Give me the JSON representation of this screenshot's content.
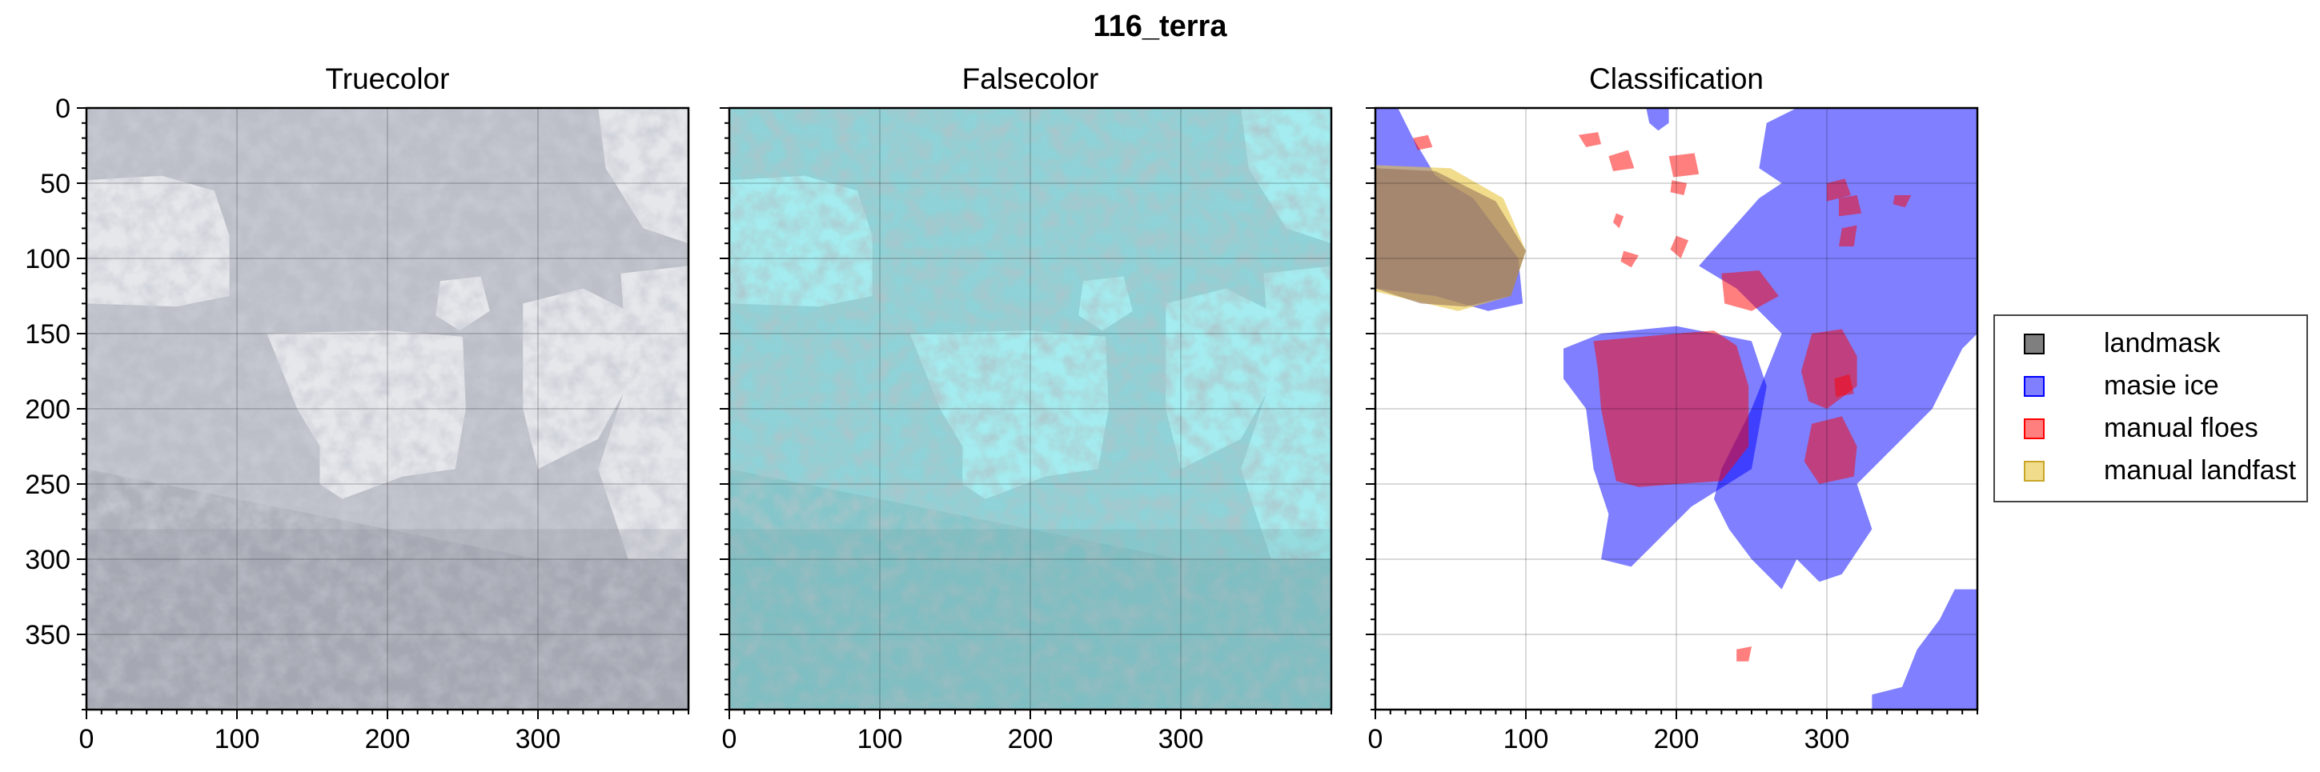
{
  "figure_title": "116_terra",
  "panels": [
    {
      "title": "Truecolor"
    },
    {
      "title": "Falsecolor"
    },
    {
      "title": "Classification"
    }
  ],
  "legend": [
    {
      "label": "landmask",
      "color": "#000000",
      "alpha": 0.5
    },
    {
      "label": "masie ice",
      "color": "#0000ff",
      "alpha": 0.5
    },
    {
      "label": "manual floes",
      "color": "#ff0000",
      "alpha": 0.5
    },
    {
      "label": "manual landfast",
      "color": "#e8c440",
      "alpha": 0.6
    }
  ],
  "chart_data": {
    "type": "image",
    "panels": [
      "Truecolor",
      "Falsecolor",
      "Classification"
    ],
    "x_ticks": [
      0,
      100,
      200,
      300
    ],
    "y_ticks": [
      0,
      50,
      100,
      150,
      200,
      250,
      300,
      350
    ],
    "xlim": [
      0,
      400
    ],
    "ylim": [
      400,
      0
    ],
    "y_axis_shown_on": "Truecolor",
    "grid": true,
    "classification_regions": {
      "landmask": [
        [
          [
            0,
            40
          ],
          [
            40,
            42
          ],
          [
            80,
            62
          ],
          [
            100,
            95
          ],
          [
            90,
            125
          ],
          [
            60,
            132
          ],
          [
            30,
            130
          ],
          [
            0,
            120
          ]
        ]
      ],
      "manual_landfast": [
        [
          [
            0,
            38
          ],
          [
            50,
            40
          ],
          [
            85,
            60
          ],
          [
            100,
            95
          ],
          [
            90,
            125
          ],
          [
            55,
            135
          ],
          [
            0,
            122
          ]
        ]
      ],
      "masie_ice": [
        [
          [
            0,
            0
          ],
          [
            15,
            0
          ],
          [
            25,
            20
          ],
          [
            40,
            45
          ],
          [
            65,
            60
          ],
          [
            95,
            100
          ],
          [
            98,
            130
          ],
          [
            75,
            135
          ],
          [
            40,
            125
          ],
          [
            0,
            120
          ]
        ],
        [
          [
            180,
            0
          ],
          [
            195,
            0
          ],
          [
            195,
            10
          ],
          [
            188,
            15
          ],
          [
            182,
            10
          ]
        ],
        [
          [
            255,
            60
          ],
          [
            270,
            50
          ],
          [
            255,
            40
          ],
          [
            260,
            10
          ],
          [
            280,
            0
          ],
          [
            400,
            0
          ],
          [
            400,
            150
          ],
          [
            390,
            160
          ],
          [
            370,
            200
          ],
          [
            350,
            220
          ],
          [
            340,
            230
          ],
          [
            320,
            250
          ],
          [
            330,
            280
          ],
          [
            310,
            310
          ],
          [
            295,
            315
          ],
          [
            280,
            300
          ],
          [
            270,
            320
          ],
          [
            250,
            300
          ],
          [
            235,
            280
          ],
          [
            225,
            260
          ],
          [
            230,
            240
          ],
          [
            250,
            200
          ],
          [
            270,
            150
          ],
          [
            240,
            120
          ],
          [
            215,
            105
          ]
        ],
        [
          [
            385,
            320
          ],
          [
            400,
            320
          ],
          [
            400,
            400
          ],
          [
            330,
            400
          ],
          [
            330,
            390
          ],
          [
            350,
            385
          ],
          [
            360,
            360
          ],
          [
            375,
            340
          ]
        ],
        [
          [
            125,
            160
          ],
          [
            150,
            150
          ],
          [
            200,
            145
          ],
          [
            250,
            155
          ],
          [
            260,
            185
          ],
          [
            250,
            240
          ],
          [
            210,
            265
          ],
          [
            185,
            290
          ],
          [
            170,
            305
          ],
          [
            150,
            300
          ],
          [
            155,
            270
          ],
          [
            145,
            240
          ],
          [
            140,
            200
          ],
          [
            125,
            180
          ]
        ]
      ],
      "manual_floes": [
        [
          [
            25,
            20
          ],
          [
            35,
            18
          ],
          [
            38,
            26
          ],
          [
            28,
            28
          ]
        ],
        [
          [
            135,
            18
          ],
          [
            148,
            16
          ],
          [
            150,
            24
          ],
          [
            140,
            26
          ]
        ],
        [
          [
            155,
            32
          ],
          [
            168,
            28
          ],
          [
            172,
            40
          ],
          [
            158,
            42
          ]
        ],
        [
          [
            195,
            32
          ],
          [
            212,
            30
          ],
          [
            215,
            44
          ],
          [
            198,
            46
          ]
        ],
        [
          [
            197,
            48
          ],
          [
            207,
            50
          ],
          [
            205,
            58
          ],
          [
            196,
            56
          ]
        ],
        [
          [
            160,
            70
          ],
          [
            165,
            72
          ],
          [
            162,
            80
          ],
          [
            158,
            76
          ]
        ],
        [
          [
            200,
            85
          ],
          [
            208,
            88
          ],
          [
            203,
            100
          ],
          [
            196,
            94
          ]
        ],
        [
          [
            165,
            95
          ],
          [
            175,
            98
          ],
          [
            170,
            106
          ],
          [
            163,
            102
          ]
        ],
        [
          [
            230,
            110
          ],
          [
            255,
            108
          ],
          [
            268,
            125
          ],
          [
            250,
            135
          ],
          [
            232,
            130
          ]
        ],
        [
          [
            145,
            155
          ],
          [
            200,
            150
          ],
          [
            225,
            148
          ],
          [
            240,
            158
          ],
          [
            248,
            185
          ],
          [
            248,
            225
          ],
          [
            230,
            248
          ],
          [
            200,
            250
          ],
          [
            175,
            252
          ],
          [
            160,
            248
          ],
          [
            155,
            225
          ],
          [
            150,
            200
          ],
          [
            148,
            175
          ]
        ],
        [
          [
            290,
            150
          ],
          [
            310,
            147
          ],
          [
            320,
            165
          ],
          [
            320,
            185
          ],
          [
            300,
            200
          ],
          [
            288,
            195
          ],
          [
            283,
            175
          ]
        ],
        [
          [
            290,
            210
          ],
          [
            310,
            205
          ],
          [
            320,
            225
          ],
          [
            318,
            245
          ],
          [
            295,
            250
          ],
          [
            285,
            235
          ]
        ],
        [
          [
            305,
            180
          ],
          [
            315,
            177
          ],
          [
            318,
            190
          ],
          [
            306,
            192
          ]
        ],
        [
          [
            300,
            50
          ],
          [
            312,
            47
          ],
          [
            316,
            58
          ],
          [
            300,
            62
          ]
        ],
        [
          [
            308,
            60
          ],
          [
            320,
            58
          ],
          [
            323,
            70
          ],
          [
            308,
            72
          ]
        ],
        [
          [
            310,
            80
          ],
          [
            320,
            78
          ],
          [
            318,
            92
          ],
          [
            308,
            92
          ]
        ],
        [
          [
            345,
            58
          ],
          [
            356,
            58
          ],
          [
            352,
            66
          ],
          [
            344,
            64
          ]
        ],
        [
          [
            240,
            360
          ],
          [
            250,
            358
          ],
          [
            248,
            368
          ],
          [
            240,
            368
          ]
        ]
      ]
    }
  }
}
